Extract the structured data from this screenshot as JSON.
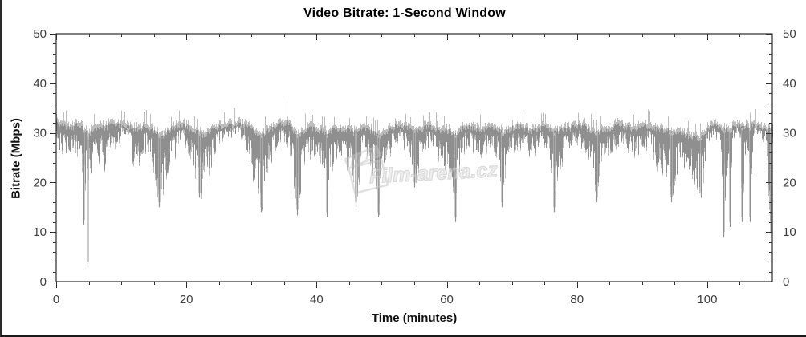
{
  "watermark": {
    "text": "Film-arena.cz"
  },
  "chart_data": {
    "type": "line",
    "title": "Video Bitrate: 1-Second Window",
    "xlabel": "Time (minutes)",
    "ylabel": "Bitrate (Mbps)",
    "xlim": [
      0,
      110
    ],
    "ylim": [
      0,
      50
    ],
    "x_major_ticks": [
      0,
      20,
      40,
      60,
      80,
      100
    ],
    "x_minor_step": 5,
    "y_major_ticks": [
      0,
      10,
      20,
      30,
      40,
      50
    ],
    "y_minor_step": 2,
    "grid": false,
    "legend": null,
    "series_name": "video-bitrate-1s",
    "series_color": "#8f8f8f",
    "series_light_color": "#bdbdbd",
    "axis_color": "#000000",
    "tick_label_color": "#3d3d3d",
    "band_envelope_points": [
      [
        0,
        25,
        33
      ],
      [
        0.5,
        26,
        32
      ],
      [
        1,
        26,
        32
      ],
      [
        2,
        25,
        31.5
      ],
      [
        3,
        24,
        32
      ],
      [
        3.8,
        22,
        32
      ],
      [
        4.2,
        12,
        31
      ],
      [
        4.5,
        20,
        31
      ],
      [
        4.8,
        3,
        30
      ],
      [
        5,
        20,
        30
      ],
      [
        5.5,
        20,
        31
      ],
      [
        6,
        24,
        31.5
      ],
      [
        7,
        24,
        32
      ],
      [
        7.5,
        22,
        31.5
      ],
      [
        8,
        26,
        32
      ],
      [
        9,
        27,
        32
      ],
      [
        10,
        29,
        32
      ],
      [
        11,
        29,
        32
      ],
      [
        12,
        22,
        31.5
      ],
      [
        12.5,
        22,
        31
      ],
      [
        13,
        26,
        31.5
      ],
      [
        14,
        26,
        32
      ],
      [
        15,
        22,
        31
      ],
      [
        15.8,
        15,
        30
      ],
      [
        16.5,
        17,
        30
      ],
      [
        17,
        22,
        31
      ],
      [
        18,
        24,
        31.5
      ],
      [
        19,
        28,
        32
      ],
      [
        20,
        27,
        32
      ],
      [
        21,
        22,
        31
      ],
      [
        21.8,
        17,
        30.5
      ],
      [
        22.5,
        17,
        30
      ],
      [
        23,
        20,
        30.5
      ],
      [
        24,
        24,
        31
      ],
      [
        25,
        28,
        32
      ],
      [
        26,
        29,
        32
      ],
      [
        27,
        29,
        32
      ],
      [
        28,
        29,
        32.5
      ],
      [
        29,
        28,
        32
      ],
      [
        29.5,
        24,
        31.5
      ],
      [
        30,
        22,
        31
      ],
      [
        30.8,
        16,
        30
      ],
      [
        31.5,
        14,
        30
      ],
      [
        32,
        18,
        30.5
      ],
      [
        33,
        24,
        31.5
      ],
      [
        34,
        28,
        32
      ],
      [
        35,
        28,
        32.5
      ],
      [
        35.4,
        28,
        33
      ],
      [
        35.8,
        26,
        32
      ],
      [
        36.5,
        18,
        31
      ],
      [
        37,
        13.5,
        30
      ],
      [
        37.5,
        18,
        30.5
      ],
      [
        38,
        22,
        31
      ],
      [
        39,
        25,
        31.5
      ],
      [
        40,
        24,
        31
      ],
      [
        41,
        20,
        31
      ],
      [
        41.5,
        13,
        30
      ],
      [
        42,
        20,
        30.5
      ],
      [
        43,
        25,
        31.5
      ],
      [
        44,
        24,
        31
      ],
      [
        45,
        22,
        31
      ],
      [
        46,
        15,
        30.5
      ],
      [
        46.5,
        20,
        31
      ],
      [
        47,
        26,
        31.5
      ],
      [
        48,
        24,
        31
      ],
      [
        49,
        20,
        30.5
      ],
      [
        49.5,
        13,
        30
      ],
      [
        50,
        18,
        30.5
      ],
      [
        50.5,
        21,
        31
      ],
      [
        51,
        24,
        31
      ],
      [
        52,
        28,
        32
      ],
      [
        53,
        28,
        32
      ],
      [
        54,
        25,
        31.5
      ],
      [
        55,
        19,
        31
      ],
      [
        56,
        24,
        31
      ],
      [
        57,
        27,
        32
      ],
      [
        58,
        26,
        31.5
      ],
      [
        59,
        24,
        31
      ],
      [
        60,
        22,
        31
      ],
      [
        61,
        18,
        30.5
      ],
      [
        61.3,
        12,
        30
      ],
      [
        62,
        24,
        31
      ],
      [
        63,
        27,
        32
      ],
      [
        64,
        26,
        31.5
      ],
      [
        65,
        25,
        31
      ],
      [
        66,
        26,
        31.5
      ],
      [
        67,
        27,
        32
      ],
      [
        68,
        24,
        31
      ],
      [
        68.5,
        15,
        30.5
      ],
      [
        69,
        22,
        31
      ],
      [
        70,
        26,
        31.5
      ],
      [
        71,
        27,
        32
      ],
      [
        72,
        26,
        31.5
      ],
      [
        73,
        25,
        31
      ],
      [
        74,
        26,
        31.5
      ],
      [
        75,
        27,
        32
      ],
      [
        76,
        22,
        31
      ],
      [
        76.5,
        14,
        30.5
      ],
      [
        77,
        20,
        31
      ],
      [
        78,
        25,
        31.5
      ],
      [
        79,
        26,
        31.5
      ],
      [
        80,
        27,
        32
      ],
      [
        81,
        27,
        32
      ],
      [
        82,
        24,
        31
      ],
      [
        83,
        16,
        30.5
      ],
      [
        83.5,
        20,
        31
      ],
      [
        84,
        25,
        31
      ],
      [
        85,
        26,
        31.5
      ],
      [
        86,
        27,
        32
      ],
      [
        87,
        27,
        32
      ],
      [
        88,
        26,
        31.5
      ],
      [
        89,
        25,
        31
      ],
      [
        90,
        26,
        32
      ],
      [
        91,
        27,
        32
      ],
      [
        92,
        24,
        31.5
      ],
      [
        93,
        20,
        31
      ],
      [
        94,
        22,
        31
      ],
      [
        94.5,
        16,
        30.5
      ],
      [
        95,
        20,
        31
      ],
      [
        96,
        23,
        30.5
      ],
      [
        97,
        23,
        30
      ],
      [
        98,
        20,
        29.5
      ],
      [
        99,
        17,
        29.5
      ],
      [
        99.5,
        20,
        30
      ],
      [
        100,
        28,
        31.5
      ],
      [
        101,
        29,
        32
      ],
      [
        102,
        28,
        31.5
      ],
      [
        102.5,
        9,
        31
      ],
      [
        103,
        26,
        31.5
      ],
      [
        103.5,
        11,
        31
      ],
      [
        104,
        29,
        32
      ],
      [
        105,
        29,
        32
      ],
      [
        105.3,
        12,
        31.5
      ],
      [
        106,
        29,
        32
      ],
      [
        106.5,
        12,
        31.5
      ],
      [
        107,
        29,
        32
      ],
      [
        108,
        29,
        32
      ],
      [
        109,
        28,
        31.5
      ],
      [
        109.7,
        9,
        31
      ],
      [
        110,
        24,
        31.5
      ]
    ],
    "deep_dips": [
      [
        4.2,
        11.5
      ],
      [
        4.8,
        3
      ],
      [
        15.8,
        15
      ],
      [
        21.9,
        17
      ],
      [
        31.5,
        14
      ],
      [
        37,
        13.5
      ],
      [
        41.5,
        13
      ],
      [
        46,
        15
      ],
      [
        49.5,
        13
      ],
      [
        55,
        19
      ],
      [
        61.3,
        12
      ],
      [
        68.5,
        15
      ],
      [
        76.5,
        14
      ],
      [
        83,
        16
      ],
      [
        94.5,
        16
      ],
      [
        99,
        17
      ],
      [
        102.5,
        9
      ],
      [
        103.5,
        11
      ],
      [
        105.3,
        12
      ],
      [
        106.5,
        12
      ],
      [
        109.7,
        9
      ]
    ],
    "up_spikes": [
      [
        35.4,
        37
      ]
    ]
  }
}
